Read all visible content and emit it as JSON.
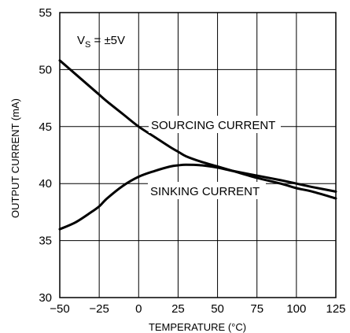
{
  "chart_data": {
    "type": "line",
    "title": "",
    "xlabel": "TEMPERATURE (°C)",
    "ylabel": "OUTPUT CURRENT (mA)",
    "xlim": [
      -50,
      125
    ],
    "ylim": [
      30,
      55
    ],
    "x_ticks": [
      -50,
      -25,
      0,
      25,
      50,
      75,
      100,
      125
    ],
    "y_ticks": [
      30,
      35,
      40,
      45,
      50,
      55
    ],
    "x_tick_labels": [
      "−50",
      "−25",
      "0",
      "25",
      "50",
      "75",
      "100",
      "125"
    ],
    "y_tick_labels": [
      "30",
      "35",
      "40",
      "45",
      "50",
      "55"
    ],
    "grid": true,
    "condition": {
      "prefix": "V",
      "sub": "S",
      "suffix": " = ±5V"
    },
    "series": [
      {
        "name": "SOURCING CURRENT",
        "x": [
          -50,
          -40,
          -30,
          -25,
          -20,
          -10,
          0,
          10,
          20,
          25,
          30,
          40,
          50,
          60,
          75,
          90,
          100,
          110,
          125
        ],
        "y": [
          50.8,
          49.6,
          48.4,
          47.8,
          47.2,
          46.1,
          45.0,
          44.1,
          43.2,
          42.8,
          42.4,
          41.9,
          41.5,
          41.1,
          40.5,
          40.0,
          39.6,
          39.3,
          38.7
        ]
      },
      {
        "name": "SINKING CURRENT",
        "x": [
          -50,
          -40,
          -30,
          -25,
          -20,
          -10,
          0,
          10,
          20,
          25,
          30,
          40,
          50,
          60,
          75,
          90,
          100,
          110,
          125
        ],
        "y": [
          36.0,
          36.6,
          37.5,
          38.0,
          38.7,
          39.8,
          40.6,
          41.1,
          41.5,
          41.6,
          41.65,
          41.6,
          41.4,
          41.1,
          40.7,
          40.3,
          40.0,
          39.7,
          39.3
        ]
      }
    ]
  }
}
